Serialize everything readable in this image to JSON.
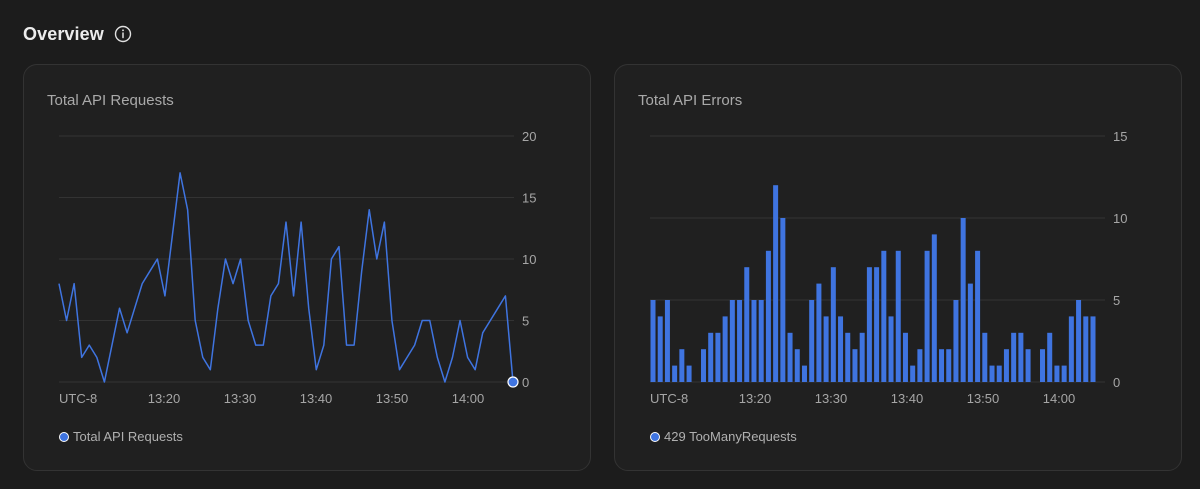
{
  "header": {
    "title": "Overview",
    "info_icon": "info-icon"
  },
  "colors": {
    "accent": "#3f74e0",
    "grid": "#333333",
    "card_bg": "#202020",
    "page_bg": "#1c1c1c"
  },
  "chart_data": [
    {
      "type": "line",
      "title": "Total API Requests",
      "timezone_label": "UTC-8",
      "xticks": [
        "13:20",
        "13:30",
        "13:40",
        "13:50",
        "14:00"
      ],
      "yticks": [
        "20",
        "15",
        "10",
        "5",
        "0"
      ],
      "ylim": [
        0,
        20
      ],
      "legend": [
        "Total API Requests"
      ],
      "series": [
        {
          "name": "Total API Requests",
          "values": [
            8,
            5,
            8,
            2,
            3,
            2,
            0,
            3,
            6,
            4,
            6,
            8,
            9,
            10,
            7,
            12,
            17,
            14,
            5,
            2,
            1,
            6,
            10,
            8,
            10,
            5,
            3,
            3,
            7,
            8,
            13,
            7,
            13,
            6,
            1,
            3,
            10,
            11,
            3,
            3,
            9,
            14,
            10,
            13,
            5,
            1,
            2,
            3,
            5,
            5,
            2,
            0,
            2,
            5,
            2,
            1,
            4,
            5,
            6,
            7,
            0
          ]
        }
      ]
    },
    {
      "type": "bar",
      "title": "Total API Errors",
      "timezone_label": "UTC-8",
      "xticks": [
        "13:20",
        "13:30",
        "13:40",
        "13:50",
        "14:00"
      ],
      "yticks": [
        "15",
        "10",
        "5",
        "0"
      ],
      "ylim": [
        0,
        15
      ],
      "legend": [
        "429 TooManyRequests"
      ],
      "series": [
        {
          "name": "429 TooManyRequests",
          "values": [
            5,
            4,
            5,
            1,
            2,
            1,
            0,
            2,
            3,
            3,
            4,
            5,
            5,
            7,
            5,
            5,
            8,
            12,
            10,
            3,
            2,
            1,
            5,
            6,
            4,
            7,
            4,
            3,
            2,
            3,
            7,
            7,
            8,
            4,
            8,
            3,
            1,
            2,
            8,
            9,
            2,
            2,
            5,
            10,
            6,
            8,
            3,
            1,
            1,
            2,
            3,
            3,
            2,
            0,
            2,
            3,
            1,
            1,
            4,
            5,
            4,
            4
          ]
        }
      ]
    }
  ]
}
